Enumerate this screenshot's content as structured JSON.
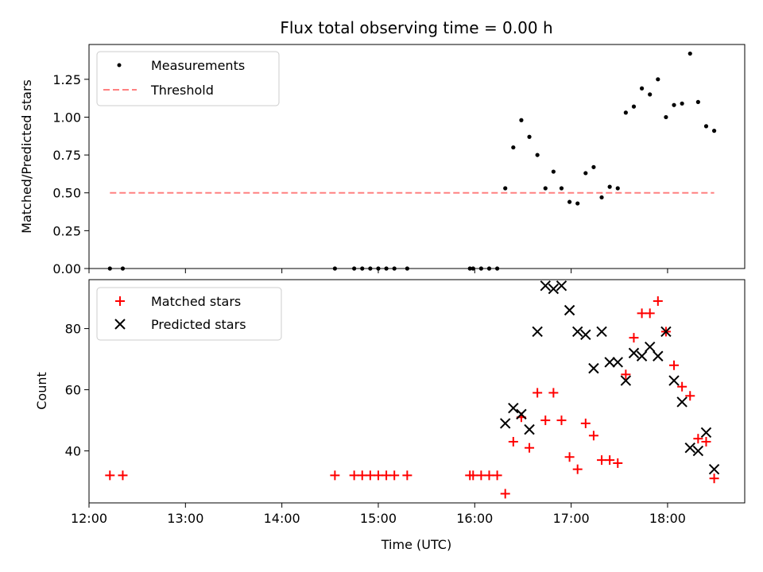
{
  "chart_data": [
    {
      "type": "scatter",
      "title": "Flux total observing time = 0.00 h",
      "xlabel": "",
      "ylabel": "Matched/Predicted stars",
      "xlim": [
        "12:00",
        "18:48"
      ],
      "ylim": [
        0,
        1.48
      ],
      "yticks": [
        "0.00",
        "0.25",
        "0.50",
        "0.75",
        "1.00",
        "1.25"
      ],
      "grid": false,
      "legend_position": "upper-left",
      "series": [
        {
          "name": "Measurements",
          "marker": "dot",
          "color": "#000000",
          "points": [
            [
              "12:13",
              0.0
            ],
            [
              "12:21",
              0.0
            ],
            [
              "14:33",
              0.0
            ],
            [
              "14:45",
              0.0
            ],
            [
              "14:50",
              0.0
            ],
            [
              "14:55",
              0.0
            ],
            [
              "15:00",
              0.0
            ],
            [
              "15:05",
              0.0
            ],
            [
              "15:10",
              0.0
            ],
            [
              "15:18",
              0.0
            ],
            [
              "15:57",
              0.0
            ],
            [
              "15:59",
              0.0
            ],
            [
              "16:04",
              0.0
            ],
            [
              "16:09",
              0.0
            ],
            [
              "16:14",
              0.0
            ],
            [
              "16:19",
              0.53
            ],
            [
              "16:24",
              0.8
            ],
            [
              "16:29",
              0.98
            ],
            [
              "16:34",
              0.87
            ],
            [
              "16:39",
              0.75
            ],
            [
              "16:44",
              0.53
            ],
            [
              "16:49",
              0.64
            ],
            [
              "16:54",
              0.53
            ],
            [
              "16:59",
              0.44
            ],
            [
              "17:04",
              0.43
            ],
            [
              "17:09",
              0.63
            ],
            [
              "17:14",
              0.67
            ],
            [
              "17:19",
              0.47
            ],
            [
              "17:24",
              0.54
            ],
            [
              "17:29",
              0.53
            ],
            [
              "17:34",
              1.03
            ],
            [
              "17:39",
              1.07
            ],
            [
              "17:44",
              1.19
            ],
            [
              "17:49",
              1.15
            ],
            [
              "17:54",
              1.25
            ],
            [
              "17:59",
              1.0
            ],
            [
              "18:04",
              1.08
            ],
            [
              "18:09",
              1.09
            ],
            [
              "18:14",
              1.42
            ],
            [
              "18:19",
              1.1
            ],
            [
              "18:24",
              0.94
            ],
            [
              "18:29",
              0.91
            ]
          ]
        },
        {
          "name": "Threshold",
          "type": "line",
          "style": "dashed",
          "color": "#ff8080",
          "points": [
            [
              "12:13",
              0.5
            ],
            [
              "18:29",
              0.5
            ]
          ]
        }
      ]
    },
    {
      "type": "scatter",
      "title": "",
      "xlabel": "Time (UTC)",
      "ylabel": "Count",
      "xlim": [
        "12:00",
        "18:48"
      ],
      "ylim": [
        23,
        96
      ],
      "xticks": [
        "12:00",
        "13:00",
        "14:00",
        "15:00",
        "16:00",
        "17:00",
        "18:00"
      ],
      "yticks": [
        "40",
        "60",
        "80"
      ],
      "grid": false,
      "legend_position": "upper-left",
      "series": [
        {
          "name": "Matched stars",
          "marker": "plus",
          "color": "#ff0000",
          "points": [
            [
              "12:13",
              32
            ],
            [
              "12:21",
              32
            ],
            [
              "14:33",
              32
            ],
            [
              "14:45",
              32
            ],
            [
              "14:50",
              32
            ],
            [
              "14:55",
              32
            ],
            [
              "15:00",
              32
            ],
            [
              "15:05",
              32
            ],
            [
              "15:10",
              32
            ],
            [
              "15:18",
              32
            ],
            [
              "15:57",
              32
            ],
            [
              "15:59",
              32
            ],
            [
              "16:04",
              32
            ],
            [
              "16:09",
              32
            ],
            [
              "16:14",
              32
            ],
            [
              "16:19",
              26
            ],
            [
              "16:24",
              43
            ],
            [
              "16:29",
              51
            ],
            [
              "16:34",
              41
            ],
            [
              "16:39",
              59
            ],
            [
              "16:44",
              50
            ],
            [
              "16:49",
              59
            ],
            [
              "16:54",
              50
            ],
            [
              "16:59",
              38
            ],
            [
              "17:04",
              34
            ],
            [
              "17:09",
              49
            ],
            [
              "17:14",
              45
            ],
            [
              "17:19",
              37
            ],
            [
              "17:24",
              37
            ],
            [
              "17:29",
              36
            ],
            [
              "17:34",
              65
            ],
            [
              "17:39",
              77
            ],
            [
              "17:44",
              85
            ],
            [
              "17:49",
              85
            ],
            [
              "17:54",
              89
            ],
            [
              "17:59",
              79
            ],
            [
              "18:04",
              68
            ],
            [
              "18:09",
              61
            ],
            [
              "18:14",
              58
            ],
            [
              "18:19",
              44
            ],
            [
              "18:24",
              43
            ],
            [
              "18:29",
              31
            ]
          ]
        },
        {
          "name": "Predicted stars",
          "marker": "x",
          "color": "#000000",
          "points": [
            [
              "16:19",
              49
            ],
            [
              "16:24",
              54
            ],
            [
              "16:29",
              52
            ],
            [
              "16:34",
              47
            ],
            [
              "16:39",
              79
            ],
            [
              "16:44",
              94
            ],
            [
              "16:49",
              93
            ],
            [
              "16:54",
              94
            ],
            [
              "16:59",
              86
            ],
            [
              "17:04",
              79
            ],
            [
              "17:09",
              78
            ],
            [
              "17:14",
              67
            ],
            [
              "17:19",
              79
            ],
            [
              "17:24",
              69
            ],
            [
              "17:29",
              69
            ],
            [
              "17:34",
              63
            ],
            [
              "17:39",
              72
            ],
            [
              "17:44",
              71
            ],
            [
              "17:49",
              74
            ],
            [
              "17:54",
              71
            ],
            [
              "17:59",
              79
            ],
            [
              "18:04",
              63
            ],
            [
              "18:09",
              56
            ],
            [
              "18:14",
              41
            ],
            [
              "18:19",
              40
            ],
            [
              "18:24",
              46
            ],
            [
              "18:29",
              34
            ]
          ]
        }
      ]
    }
  ]
}
